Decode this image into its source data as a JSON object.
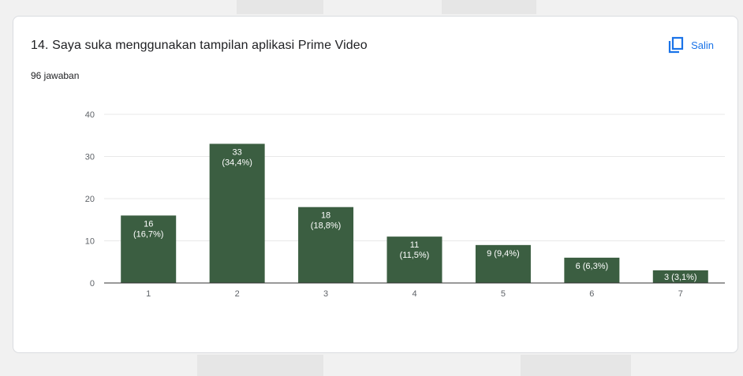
{
  "card": {
    "title": "14. Saya suka menggunakan tampilan aplikasi Prime Video",
    "response_count": "96 jawaban",
    "copy_label": "Salin"
  },
  "colors": {
    "bar": "#3b5e41",
    "grid": "#e8e8e8",
    "axis": "#333333",
    "tick_text": "#5f6368",
    "accent": "#1a73e8"
  },
  "icons": {
    "copy": "copy-icon"
  },
  "chart_data": {
    "type": "bar",
    "categories": [
      "1",
      "2",
      "3",
      "4",
      "5",
      "6",
      "7"
    ],
    "values": [
      16,
      33,
      18,
      11,
      9,
      6,
      3
    ],
    "labels": [
      "16 (16,7%)",
      "33 (34,4%)",
      "18 (18,8%)",
      "11 (11,5%)",
      "9 (9,4%)",
      "6 (6,3%)",
      "3 (3,1%)"
    ],
    "label_lines": [
      [
        "16",
        "(16,7%)"
      ],
      [
        "33",
        "(34,4%)"
      ],
      [
        "18",
        "(18,8%)"
      ],
      [
        "11",
        "(11,5%)"
      ],
      [
        "9 (9,4%)"
      ],
      [
        "6 (6,3%)"
      ],
      [
        "3 (3,1%)"
      ]
    ],
    "yticks": [
      0,
      10,
      20,
      30,
      40
    ],
    "ylim": [
      0,
      40
    ],
    "grid": true,
    "legend": "none"
  }
}
